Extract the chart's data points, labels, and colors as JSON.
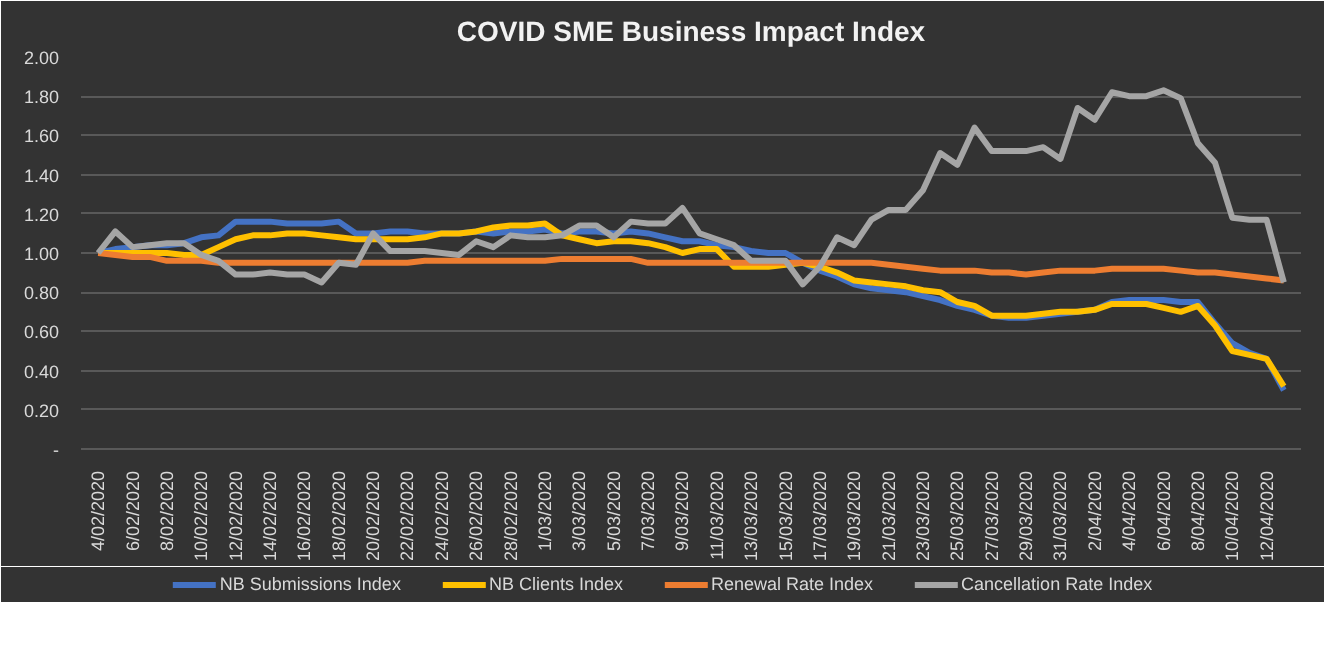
{
  "chart_data": {
    "type": "line",
    "title": "COVID SME Business Impact Index",
    "x": [
      "2020-02-04",
      "2020-02-05",
      "2020-02-06",
      "2020-02-07",
      "2020-02-08",
      "2020-02-09",
      "2020-02-10",
      "2020-02-11",
      "2020-02-12",
      "2020-02-13",
      "2020-02-14",
      "2020-02-15",
      "2020-02-16",
      "2020-02-17",
      "2020-02-18",
      "2020-02-19",
      "2020-02-20",
      "2020-02-21",
      "2020-02-22",
      "2020-02-23",
      "2020-02-24",
      "2020-02-25",
      "2020-02-26",
      "2020-02-27",
      "2020-02-28",
      "2020-02-29",
      "2020-03-01",
      "2020-03-02",
      "2020-03-03",
      "2020-03-04",
      "2020-03-05",
      "2020-03-06",
      "2020-03-07",
      "2020-03-08",
      "2020-03-09",
      "2020-03-10",
      "2020-03-11",
      "2020-03-12",
      "2020-03-13",
      "2020-03-14",
      "2020-03-15",
      "2020-03-16",
      "2020-03-17",
      "2020-03-18",
      "2020-03-19",
      "2020-03-20",
      "2020-03-21",
      "2020-03-22",
      "2020-03-23",
      "2020-03-24",
      "2020-03-25",
      "2020-03-26",
      "2020-03-27",
      "2020-03-28",
      "2020-03-29",
      "2020-03-30",
      "2020-03-31",
      "2020-04-01",
      "2020-04-02",
      "2020-04-03",
      "2020-04-04",
      "2020-04-05",
      "2020-04-06",
      "2020-04-07",
      "2020-04-08",
      "2020-04-09",
      "2020-04-10",
      "2020-04-11",
      "2020-04-12",
      "2020-04-13"
    ],
    "series": [
      {
        "name": "NB Submissions Index",
        "color": "#4472c4",
        "values": [
          1.0,
          1.02,
          1.03,
          1.04,
          1.04,
          1.05,
          1.08,
          1.09,
          1.16,
          1.16,
          1.16,
          1.15,
          1.15,
          1.15,
          1.16,
          1.1,
          1.1,
          1.11,
          1.11,
          1.1,
          1.1,
          1.1,
          1.11,
          1.1,
          1.11,
          1.11,
          1.12,
          1.1,
          1.11,
          1.11,
          1.1,
          1.11,
          1.1,
          1.08,
          1.06,
          1.06,
          1.04,
          1.03,
          1.01,
          1.0,
          1.0,
          0.95,
          0.91,
          0.88,
          0.84,
          0.82,
          0.81,
          0.8,
          0.78,
          0.76,
          0.73,
          0.71,
          0.68,
          0.67,
          0.67,
          0.68,
          0.69,
          0.7,
          0.71,
          0.75,
          0.76,
          0.76,
          0.76,
          0.75,
          0.75,
          0.64,
          0.54,
          0.49,
          0.46,
          0.3
        ]
      },
      {
        "name": "NB Clients Index",
        "color": "#ffc000",
        "values": [
          1.0,
          1.0,
          1.0,
          1.0,
          1.0,
          0.99,
          0.99,
          1.03,
          1.07,
          1.09,
          1.09,
          1.1,
          1.1,
          1.09,
          1.08,
          1.07,
          1.07,
          1.07,
          1.07,
          1.08,
          1.1,
          1.1,
          1.11,
          1.13,
          1.14,
          1.14,
          1.15,
          1.09,
          1.07,
          1.05,
          1.06,
          1.06,
          1.05,
          1.03,
          1.0,
          1.02,
          1.02,
          0.93,
          0.93,
          0.93,
          0.94,
          0.95,
          0.93,
          0.9,
          0.86,
          0.85,
          0.84,
          0.83,
          0.81,
          0.8,
          0.75,
          0.73,
          0.68,
          0.68,
          0.68,
          0.69,
          0.7,
          0.7,
          0.71,
          0.74,
          0.74,
          0.74,
          0.72,
          0.7,
          0.73,
          0.63,
          0.5,
          0.48,
          0.46,
          0.32
        ]
      },
      {
        "name": "Renewal Rate Index",
        "color": "#ed7d31",
        "values": [
          1.0,
          0.99,
          0.98,
          0.98,
          0.96,
          0.96,
          0.96,
          0.95,
          0.95,
          0.95,
          0.95,
          0.95,
          0.95,
          0.95,
          0.95,
          0.95,
          0.95,
          0.95,
          0.95,
          0.96,
          0.96,
          0.96,
          0.96,
          0.96,
          0.96,
          0.96,
          0.96,
          0.97,
          0.97,
          0.97,
          0.97,
          0.97,
          0.95,
          0.95,
          0.95,
          0.95,
          0.95,
          0.95,
          0.95,
          0.95,
          0.95,
          0.95,
          0.95,
          0.95,
          0.95,
          0.95,
          0.94,
          0.93,
          0.92,
          0.91,
          0.91,
          0.91,
          0.9,
          0.9,
          0.89,
          0.9,
          0.91,
          0.91,
          0.91,
          0.92,
          0.92,
          0.92,
          0.92,
          0.91,
          0.9,
          0.9,
          0.89,
          0.88,
          0.87,
          0.86
        ]
      },
      {
        "name": "Cancellation Rate Index",
        "color": "#a5a5a5",
        "values": [
          1.0,
          1.11,
          1.03,
          1.04,
          1.05,
          1.05,
          0.99,
          0.96,
          0.89,
          0.89,
          0.9,
          0.89,
          0.89,
          0.85,
          0.95,
          0.94,
          1.1,
          1.01,
          1.01,
          1.01,
          1.0,
          0.99,
          1.06,
          1.03,
          1.09,
          1.08,
          1.08,
          1.09,
          1.14,
          1.14,
          1.08,
          1.16,
          1.15,
          1.15,
          1.23,
          1.1,
          1.07,
          1.04,
          0.96,
          0.96,
          0.96,
          0.84,
          0.93,
          1.08,
          1.04,
          1.17,
          1.22,
          1.22,
          1.32,
          1.51,
          1.45,
          1.64,
          1.52,
          1.52,
          1.52,
          1.54,
          1.48,
          1.74,
          1.68,
          1.82,
          1.8,
          1.8,
          1.83,
          1.79,
          1.56,
          1.46,
          1.18,
          1.17,
          1.17,
          0.85
        ]
      }
    ],
    "xlim": [
      "2020-02-03",
      "2020-04-14"
    ],
    "xticks": [
      {
        "value": "2020-02-04",
        "label": "4/02/2020"
      },
      {
        "value": "2020-02-06",
        "label": "6/02/2020"
      },
      {
        "value": "2020-02-08",
        "label": "8/02/2020"
      },
      {
        "value": "2020-02-10",
        "label": "10/02/2020"
      },
      {
        "value": "2020-02-12",
        "label": "12/02/2020"
      },
      {
        "value": "2020-02-14",
        "label": "14/02/2020"
      },
      {
        "value": "2020-02-16",
        "label": "16/02/2020"
      },
      {
        "value": "2020-02-18",
        "label": "18/02/2020"
      },
      {
        "value": "2020-02-20",
        "label": "20/02/2020"
      },
      {
        "value": "2020-02-22",
        "label": "22/02/2020"
      },
      {
        "value": "2020-02-24",
        "label": "24/02/2020"
      },
      {
        "value": "2020-02-26",
        "label": "26/02/2020"
      },
      {
        "value": "2020-02-28",
        "label": "28/02/2020"
      },
      {
        "value": "2020-03-01",
        "label": "1/03/2020"
      },
      {
        "value": "2020-03-03",
        "label": "3/03/2020"
      },
      {
        "value": "2020-03-05",
        "label": "5/03/2020"
      },
      {
        "value": "2020-03-07",
        "label": "7/03/2020"
      },
      {
        "value": "2020-03-09",
        "label": "9/03/2020"
      },
      {
        "value": "2020-03-11",
        "label": "11/03/2020"
      },
      {
        "value": "2020-03-13",
        "label": "13/03/2020"
      },
      {
        "value": "2020-03-15",
        "label": "15/03/2020"
      },
      {
        "value": "2020-03-17",
        "label": "17/03/2020"
      },
      {
        "value": "2020-03-19",
        "label": "19/03/2020"
      },
      {
        "value": "2020-03-21",
        "label": "21/03/2020"
      },
      {
        "value": "2020-03-23",
        "label": "23/03/2020"
      },
      {
        "value": "2020-03-25",
        "label": "25/03/2020"
      },
      {
        "value": "2020-03-27",
        "label": "27/03/2020"
      },
      {
        "value": "2020-03-29",
        "label": "29/03/2020"
      },
      {
        "value": "2020-03-31",
        "label": "31/03/2020"
      },
      {
        "value": "2020-04-02",
        "label": "2/04/2020"
      },
      {
        "value": "2020-04-04",
        "label": "4/04/2020"
      },
      {
        "value": "2020-04-06",
        "label": "6/04/2020"
      },
      {
        "value": "2020-04-08",
        "label": "8/04/2020"
      },
      {
        "value": "2020-04-10",
        "label": "10/04/2020"
      },
      {
        "value": "2020-04-12",
        "label": "12/04/2020"
      }
    ],
    "ylim": [
      0,
      2
    ],
    "yticks": [
      {
        "value": 0,
        "label": "-"
      },
      {
        "value": 0.2,
        "label": "0.20"
      },
      {
        "value": 0.4,
        "label": "0.40"
      },
      {
        "value": 0.6,
        "label": "0.60"
      },
      {
        "value": 0.8,
        "label": "0.80"
      },
      {
        "value": 1.0,
        "label": "1.00"
      },
      {
        "value": 1.2,
        "label": "1.20"
      },
      {
        "value": 1.4,
        "label": "1.40"
      },
      {
        "value": 1.6,
        "label": "1.60"
      },
      {
        "value": 1.8,
        "label": "1.80"
      },
      {
        "value": 2.0,
        "label": "2.00"
      }
    ],
    "grid": "y",
    "legend": "bottom",
    "line_style": "solid"
  }
}
